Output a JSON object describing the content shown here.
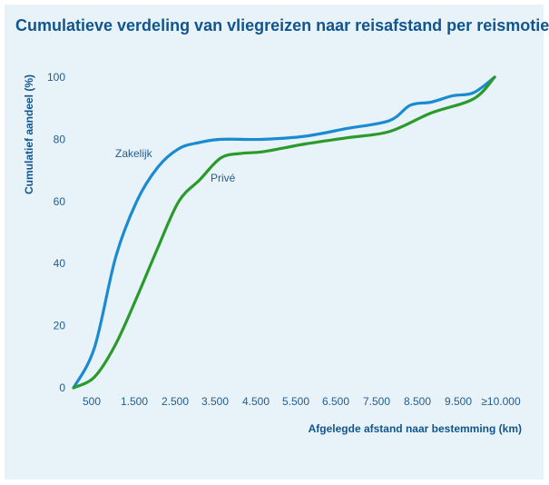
{
  "title": "Cumulatieve verdeling van vliegreizen naar reisafstand per reismotief",
  "chart_data": {
    "type": "line",
    "title": "Cumulatieve verdeling van vliegreizen naar reisafstand per reismotief",
    "xlabel": "Afgelegde afstand naar bestemming (km)",
    "ylabel": "Cumulatief aandeel (%)",
    "x_tick_labels": [
      "500",
      "1.500",
      "2.500",
      "3.500",
      "4.500",
      "5.500",
      "6.500",
      "7.500",
      "8.500",
      "9.500",
      "≥10.000"
    ],
    "x_tick_values": [
      500,
      1500,
      2500,
      3500,
      4500,
      5500,
      6500,
      7500,
      8500,
      9500,
      10000
    ],
    "y_ticks": [
      0,
      20,
      40,
      60,
      80,
      100
    ],
    "xlim": [
      0,
      10000
    ],
    "ylim": [
      0,
      100
    ],
    "grid": false,
    "legend": "inline labels",
    "series": [
      {
        "name": "Zakelijk",
        "color": "#1a8bd1",
        "x": [
          0,
          500,
          1000,
          1500,
          2000,
          2500,
          3000,
          3500,
          4500,
          5500,
          6500,
          7500,
          8000,
          8500,
          9000,
          9500,
          10000
        ],
        "y": [
          0,
          13,
          42,
          60,
          71,
          77,
          79,
          80,
          80,
          81,
          83.5,
          86,
          91,
          92,
          94,
          95,
          100
        ]
      },
      {
        "name": "Privé",
        "color": "#2a9a2a",
        "x": [
          0,
          500,
          1000,
          1500,
          2000,
          2500,
          3000,
          3500,
          4000,
          4500,
          5500,
          6500,
          7500,
          8500,
          9500,
          10000
        ],
        "y": [
          0,
          3.5,
          14,
          29,
          45,
          60,
          67,
          74,
          75.5,
          76,
          78.5,
          80.5,
          82.5,
          88.5,
          93,
          100
        ]
      }
    ]
  }
}
